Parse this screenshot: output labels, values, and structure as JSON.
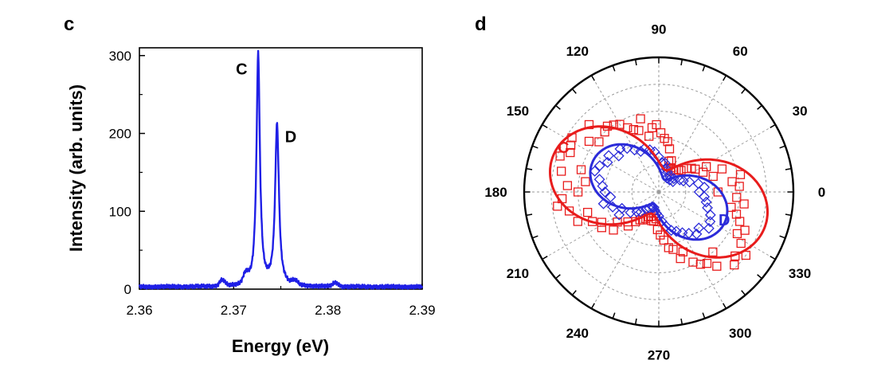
{
  "chart_data": [
    {
      "type": "line",
      "panel_label": "c",
      "title": "",
      "xlabel": "Energy (eV)",
      "ylabel": "Intensity (arb. units)",
      "xlim": [
        2.36,
        2.39
      ],
      "ylim": [
        0,
        310
      ],
      "x_ticks": [
        2.36,
        2.37,
        2.38,
        2.39
      ],
      "x_tick_labels": [
        "2.36",
        "2.37",
        "2.38",
        "2.39"
      ],
      "y_ticks": [
        0,
        100,
        200,
        300
      ],
      "y_tick_labels": [
        "0",
        "100",
        "200",
        "300"
      ],
      "grid": false,
      "color": "#1f1fe6",
      "peaks": [
        {
          "label": "C",
          "energy": 2.3726,
          "intensity": 298,
          "width": 0.00022
        },
        {
          "label": "D",
          "energy": 2.3746,
          "intensity": 207,
          "width": 0.00024
        }
      ],
      "minor_bumps": [
        {
          "energy": 2.3688,
          "intensity": 8
        },
        {
          "energy": 2.3713,
          "intensity": 12
        },
        {
          "energy": 2.3765,
          "intensity": 5
        },
        {
          "energy": 2.3808,
          "intensity": 5
        }
      ],
      "baseline": 3
    },
    {
      "type": "polar-scatter",
      "panel_label": "d",
      "title": "",
      "angle_ticks": [
        0,
        30,
        60,
        90,
        120,
        150,
        180,
        210,
        240,
        270,
        300,
        330
      ],
      "angle_tick_labels": [
        "0",
        "30",
        "60",
        "90",
        "120",
        "150",
        "180",
        "210",
        "240",
        "270",
        "300",
        "330"
      ],
      "radial_range": [
        0,
        1
      ],
      "radial_rings": [
        0.2,
        0.4,
        0.6,
        0.8
      ],
      "grid": true,
      "series": [
        {
          "name": "C",
          "color": "#e81c1c",
          "marker": "square",
          "fit": {
            "amplitude": 0.66,
            "offset": 0.17,
            "phase_deg": 163
          },
          "points": [
            [
              0,
              0.44
            ],
            [
              4,
              0.6
            ],
            [
              8,
              0.55
            ],
            [
              12,
              0.62
            ],
            [
              16,
              0.42
            ],
            [
              20,
              0.5
            ],
            [
              24,
              0.36
            ],
            [
              28,
              0.4
            ],
            [
              32,
              0.32
            ],
            [
              36,
              0.3
            ],
            [
              40,
              0.27
            ],
            [
              44,
              0.23
            ],
            [
              48,
              0.22
            ],
            [
              52,
              0.21
            ],
            [
              56,
              0.2
            ],
            [
              60,
              0.18
            ],
            [
              64,
              0.2
            ],
            [
              68,
              0.25
            ],
            [
              72,
              0.24
            ],
            [
              76,
              0.33
            ],
            [
              80,
              0.38
            ],
            [
              84,
              0.4
            ],
            [
              88,
              0.44
            ],
            [
              92,
              0.5
            ],
            [
              96,
              0.48
            ],
            [
              100,
              0.42
            ],
            [
              104,
              0.56
            ],
            [
              108,
              0.48
            ],
            [
              112,
              0.5
            ],
            [
              116,
              0.53
            ],
            [
              120,
              0.58
            ],
            [
              124,
              0.6
            ],
            [
              128,
              0.62
            ],
            [
              132,
              0.6
            ],
            [
              136,
              0.72
            ],
            [
              140,
              0.58
            ],
            [
              144,
              0.64
            ],
            [
              148,
              0.76
            ],
            [
              152,
              0.74
            ],
            [
              156,
              0.72
            ],
            [
              160,
              0.78
            ],
            [
              164,
              0.6
            ],
            [
              168,
              0.74
            ],
            [
              172,
              0.55
            ],
            [
              176,
              0.68
            ],
            [
              180,
              0.6
            ],
            [
              184,
              0.72
            ],
            [
              188,
              0.76
            ],
            [
              192,
              0.68
            ],
            [
              196,
              0.55
            ],
            [
              200,
              0.64
            ],
            [
              204,
              0.54
            ],
            [
              208,
              0.48
            ],
            [
              212,
              0.5
            ],
            [
              216,
              0.38
            ],
            [
              220,
              0.44
            ],
            [
              224,
              0.32
            ],
            [
              228,
              0.34
            ],
            [
              232,
              0.28
            ],
            [
              236,
              0.25
            ],
            [
              240,
              0.24
            ],
            [
              244,
              0.22
            ],
            [
              248,
              0.2
            ],
            [
              252,
              0.19
            ],
            [
              256,
              0.22
            ],
            [
              260,
              0.22
            ],
            [
              264,
              0.2
            ],
            [
              268,
              0.28
            ],
            [
              272,
              0.32
            ],
            [
              276,
              0.36
            ],
            [
              280,
              0.42
            ],
            [
              284,
              0.44
            ],
            [
              288,
              0.52
            ],
            [
              292,
              0.48
            ],
            [
              296,
              0.58
            ],
            [
              300,
              0.62
            ],
            [
              304,
              0.64
            ],
            [
              308,
              0.7
            ],
            [
              312,
              0.6
            ],
            [
              316,
              0.78
            ],
            [
              320,
              0.74
            ],
            [
              324,
              0.8
            ],
            [
              328,
              0.72
            ],
            [
              332,
              0.66
            ],
            [
              336,
              0.7
            ],
            [
              340,
              0.64
            ],
            [
              344,
              0.6
            ],
            [
              348,
              0.55
            ],
            [
              352,
              0.64
            ],
            [
              356,
              0.58
            ]
          ]
        },
        {
          "name": "D",
          "color": "#2b2bd9",
          "marker": "diamond",
          "fit": {
            "amplitude": 0.44,
            "offset": 0.1,
            "phase_deg": 155
          },
          "points": [
            [
              0,
              0.3
            ],
            [
              6,
              0.34
            ],
            [
              12,
              0.3
            ],
            [
              18,
              0.24
            ],
            [
              24,
              0.2
            ],
            [
              30,
              0.18
            ],
            [
              36,
              0.13
            ],
            [
              42,
              0.15
            ],
            [
              48,
              0.12
            ],
            [
              54,
              0.14
            ],
            [
              60,
              0.12
            ],
            [
              66,
              0.16
            ],
            [
              72,
              0.18
            ],
            [
              78,
              0.22
            ],
            [
              84,
              0.22
            ],
            [
              90,
              0.26
            ],
            [
              96,
              0.3
            ],
            [
              102,
              0.32
            ],
            [
              108,
              0.34
            ],
            [
              114,
              0.33
            ],
            [
              120,
              0.36
            ],
            [
              126,
              0.4
            ],
            [
              132,
              0.43
            ],
            [
              138,
              0.4
            ],
            [
              144,
              0.46
            ],
            [
              150,
              0.44
            ],
            [
              156,
              0.48
            ],
            [
              162,
              0.5
            ],
            [
              168,
              0.45
            ],
            [
              174,
              0.42
            ],
            [
              180,
              0.4
            ],
            [
              186,
              0.36
            ],
            [
              192,
              0.42
            ],
            [
              198,
              0.36
            ],
            [
              204,
              0.3
            ],
            [
              210,
              0.34
            ],
            [
              216,
              0.26
            ],
            [
              222,
              0.22
            ],
            [
              228,
              0.2
            ],
            [
              234,
              0.16
            ],
            [
              240,
              0.14
            ],
            [
              246,
              0.12
            ],
            [
              252,
              0.12
            ],
            [
              258,
              0.14
            ],
            [
              264,
              0.16
            ],
            [
              270,
              0.18
            ],
            [
              276,
              0.22
            ],
            [
              282,
              0.26
            ],
            [
              288,
              0.3
            ],
            [
              294,
              0.32
            ],
            [
              300,
              0.35
            ],
            [
              306,
              0.38
            ],
            [
              312,
              0.42
            ],
            [
              318,
              0.4
            ],
            [
              324,
              0.46
            ],
            [
              330,
              0.44
            ],
            [
              336,
              0.42
            ],
            [
              342,
              0.38
            ],
            [
              348,
              0.36
            ],
            [
              354,
              0.34
            ]
          ]
        }
      ]
    }
  ]
}
